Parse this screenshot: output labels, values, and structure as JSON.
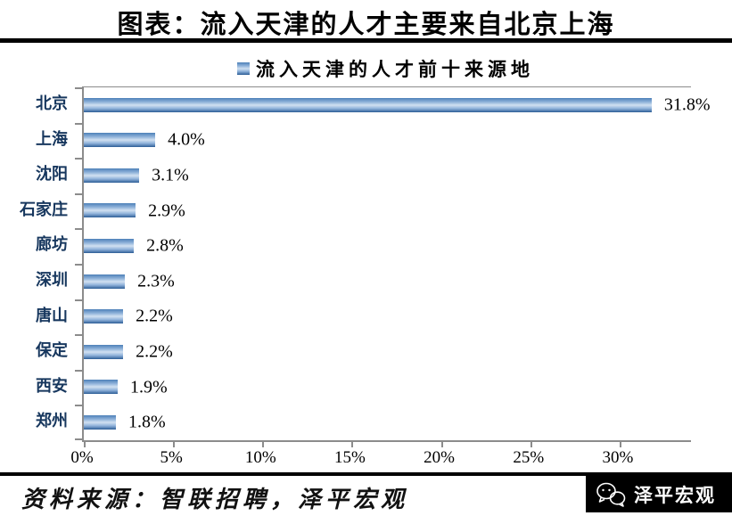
{
  "header": {
    "title": "图表：流入天津的人才主要来自北京上海"
  },
  "legend": {
    "label": "流入天津的人才前十来源地"
  },
  "chart_data": {
    "type": "bar",
    "orientation": "horizontal",
    "title": "流入天津的人才前十来源地",
    "categories": [
      "北京",
      "上海",
      "沈阳",
      "石家庄",
      "廊坊",
      "深圳",
      "唐山",
      "保定",
      "西安",
      "郑州"
    ],
    "values": [
      31.8,
      4.0,
      3.1,
      2.9,
      2.8,
      2.3,
      2.2,
      2.2,
      1.9,
      1.8
    ],
    "value_labels": [
      "31.8%",
      "4.0%",
      "3.1%",
      "2.9%",
      "2.8%",
      "2.3%",
      "2.2%",
      "2.2%",
      "1.9%",
      "1.8%"
    ],
    "xlabel": "",
    "ylabel": "",
    "xlim": [
      0,
      34
    ],
    "x_ticks": [
      {
        "value": 0,
        "label": "0%"
      },
      {
        "value": 5,
        "label": "5%"
      },
      {
        "value": 10,
        "label": "10%"
      },
      {
        "value": 15,
        "label": "15%"
      },
      {
        "value": 20,
        "label": "20%"
      },
      {
        "value": 25,
        "label": "25%"
      },
      {
        "value": 30,
        "label": "30%"
      }
    ],
    "grid": false,
    "legend_position": "top",
    "bar_color": "#4f81bd"
  },
  "footer": {
    "source": "资料来源：智联招聘，泽平宏观",
    "brand": "泽平宏观",
    "brand_icon": "chat-bubbles-icon"
  },
  "colors": {
    "bar_base": "#4f81bd",
    "bar_highlight": "#d2e1f1",
    "bar_shadow": "#2c5d96",
    "axis": "#8c8c8c",
    "category_label": "#17375E",
    "rule": "#000000",
    "brand_bg": "#000000",
    "brand_fg": "#ffffff"
  }
}
